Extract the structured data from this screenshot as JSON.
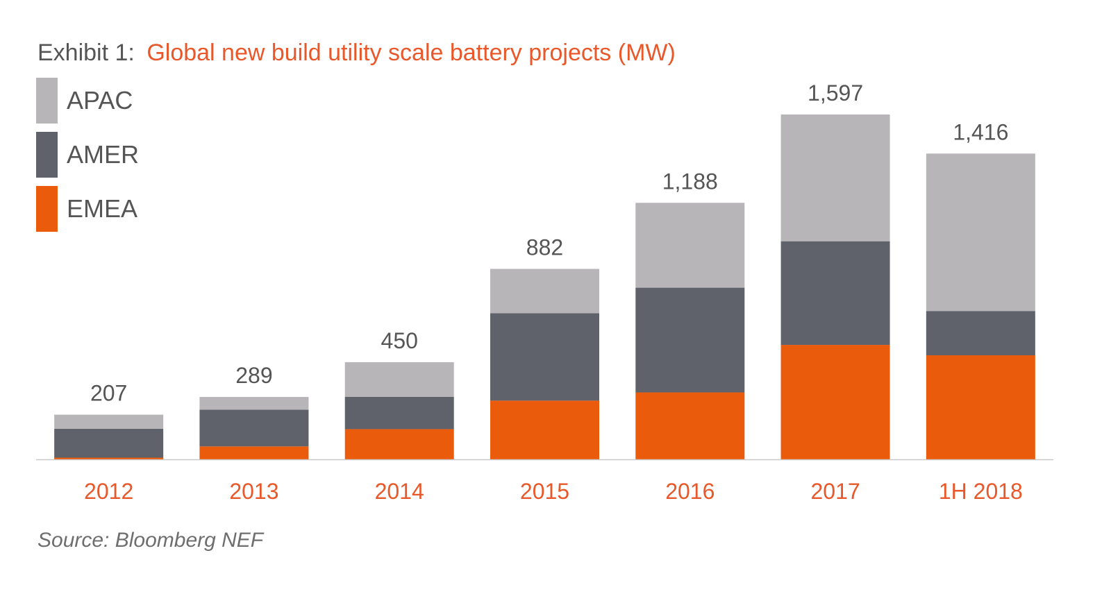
{
  "title": {
    "prefix": "Exhibit 1:",
    "text": "Global new build utility scale battery projects (MW)"
  },
  "source": "Source: Bloomberg NEF",
  "colors": {
    "APAC": "#b8b5b8",
    "AMER": "#5f626b",
    "EMEA": "#ea5b0c",
    "axis_label": "#e8582a",
    "title_prefix": "#555555",
    "title_text": "#e8582a",
    "total_label": "#555555",
    "baseline": "#c8c8c8"
  },
  "chart_data": {
    "type": "bar",
    "stacked": true,
    "title": "Global new build utility scale battery projects (MW)",
    "categories": [
      "2012",
      "2013",
      "2014",
      "2015",
      "2016",
      "2017",
      "1H 2018"
    ],
    "series": [
      {
        "name": "EMEA",
        "values": [
          8,
          60,
          140,
          272,
          310,
          530,
          482
        ]
      },
      {
        "name": "AMER",
        "values": [
          134,
          170,
          150,
          405,
          485,
          480,
          205
        ]
      },
      {
        "name": "APAC",
        "values": [
          65,
          59,
          160,
          205,
          393,
          587,
          729
        ]
      }
    ],
    "totals": [
      "207",
      "289",
      "450",
      "882",
      "1,188",
      "1,597",
      "1,416"
    ],
    "total_values": [
      207,
      289,
      450,
      882,
      1188,
      1597,
      1416
    ],
    "legend": {
      "placement": "top-left",
      "order": [
        "APAC",
        "AMER",
        "EMEA"
      ]
    },
    "ylim": [
      0,
      1600
    ],
    "grid": false,
    "y_axis_visible": false,
    "xlabel": "",
    "ylabel": ""
  }
}
